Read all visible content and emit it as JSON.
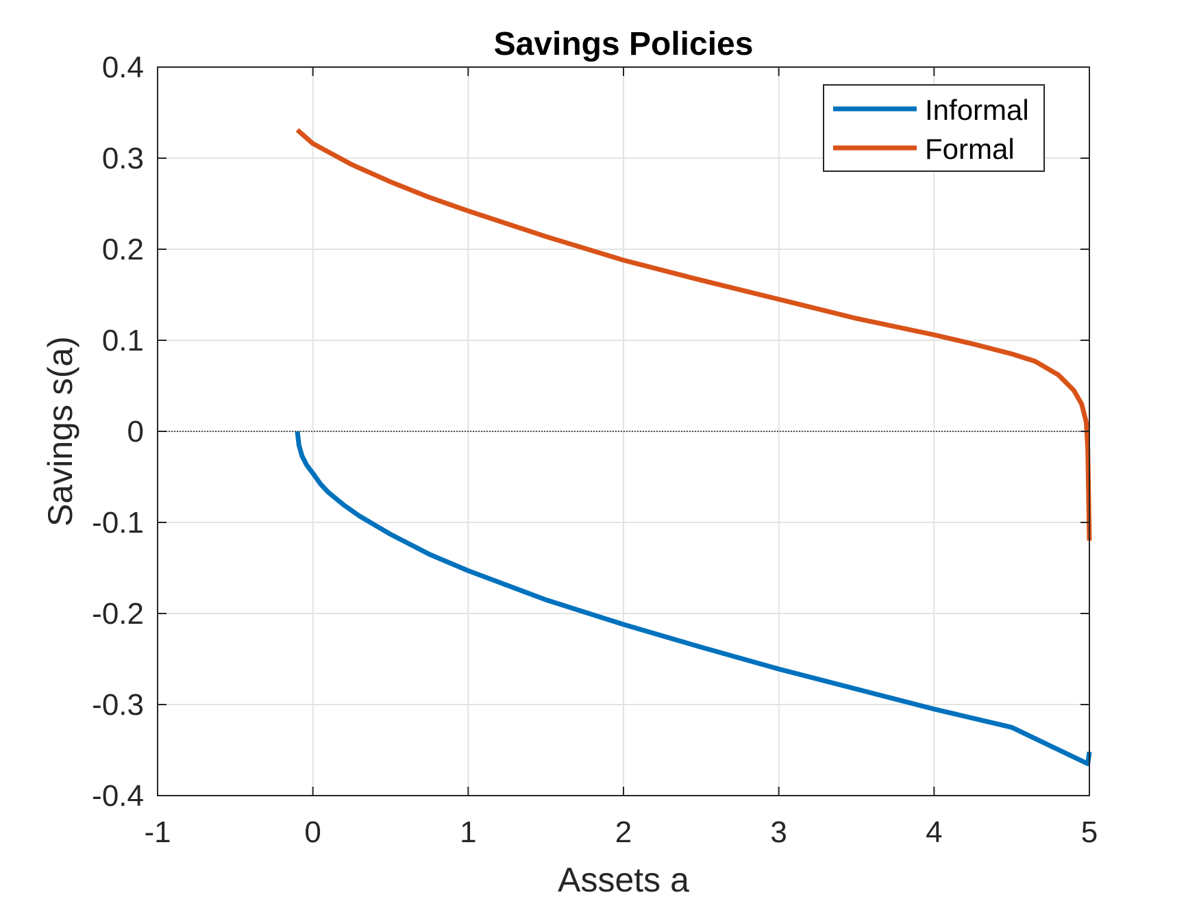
{
  "chart_data": {
    "type": "line",
    "title": "Savings Policies",
    "xlabel": "Assets a",
    "ylabel": "Savings s(a)",
    "xlim": [
      -1,
      5
    ],
    "ylim": [
      -0.4,
      0.4
    ],
    "xticks": [
      -1,
      0,
      1,
      2,
      3,
      4,
      5
    ],
    "xtick_labels": [
      "-1",
      "0",
      "1",
      "2",
      "3",
      "4",
      "5"
    ],
    "yticks": [
      -0.4,
      -0.3,
      -0.2,
      -0.1,
      0,
      0.1,
      0.2,
      0.3,
      0.4
    ],
    "ytick_labels": [
      "-0.4",
      "-0.3",
      "-0.2",
      "-0.1",
      "0",
      "0.1",
      "0.2",
      "0.3",
      "0.4"
    ],
    "grid": true,
    "legend_position": "top-right",
    "zero_line": true,
    "series": [
      {
        "name": "Informal",
        "color": "#0072BD",
        "x": [
          -0.1,
          -0.09,
          -0.07,
          -0.04,
          0.0,
          0.05,
          0.1,
          0.2,
          0.3,
          0.5,
          0.75,
          1.0,
          1.5,
          2.0,
          2.5,
          3.0,
          3.5,
          4.0,
          4.5,
          4.99,
          5.0
        ],
        "y": [
          0.0,
          -0.015,
          -0.027,
          -0.037,
          -0.046,
          -0.058,
          -0.067,
          -0.081,
          -0.093,
          -0.113,
          -0.135,
          -0.153,
          -0.185,
          -0.212,
          -0.237,
          -0.261,
          -0.283,
          -0.305,
          -0.325,
          -0.365,
          -0.352
        ]
      },
      {
        "name": "Formal",
        "color": "#D95319",
        "x": [
          -0.1,
          0.0,
          0.25,
          0.5,
          0.75,
          1.0,
          1.5,
          2.0,
          2.5,
          3.0,
          3.5,
          4.0,
          4.25,
          4.5,
          4.65,
          4.8,
          4.9,
          4.95,
          4.98,
          4.99,
          5.0
        ],
        "y": [
          0.331,
          0.316,
          0.293,
          0.274,
          0.257,
          0.242,
          0.214,
          0.188,
          0.166,
          0.145,
          0.124,
          0.106,
          0.096,
          0.085,
          0.077,
          0.062,
          0.045,
          0.03,
          0.01,
          -0.02,
          -0.12
        ]
      }
    ]
  }
}
